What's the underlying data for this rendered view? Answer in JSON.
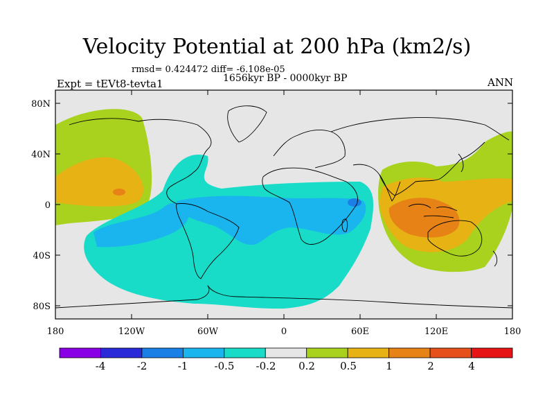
{
  "header": {
    "title": "Velocity Potential at 200 hPa (km2/s)",
    "stats": "rmsd= 0.424472  diff= -6.108e-05",
    "period": "1656kyr BP - 0000kyr BP",
    "experiment": "Expt = tEVt8-tevta1",
    "season": "ANN"
  },
  "axes": {
    "lon_ticks": [
      "180",
      "120W",
      "60W",
      "0",
      "60E",
      "120E",
      "180"
    ],
    "lat_ticks": [
      "80N",
      "40N",
      "0",
      "40S",
      "80S"
    ]
  },
  "colorbar": {
    "labels": [
      "-4",
      "-2",
      "-1",
      "-0.5",
      "-0.2",
      "0.2",
      "0.5",
      "1",
      "2",
      "4"
    ],
    "colors": [
      "#8a00e6",
      "#2a2ad8",
      "#1a80e6",
      "#1ab4ee",
      "#18dcc8",
      "#e6e6e6",
      "#a8d21e",
      "#e6b214",
      "#e68216",
      "#e6501a",
      "#e61414"
    ]
  },
  "map": {
    "ocean_color": "#e6e6e6",
    "coast_color": "#000000"
  }
}
